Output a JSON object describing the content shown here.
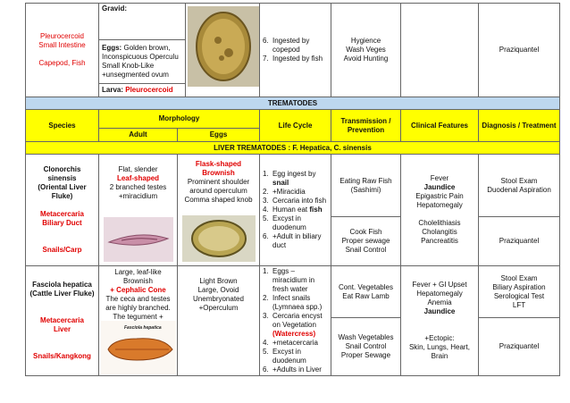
{
  "top": {
    "species": [
      "Pleurocercoid",
      "Small Intestine",
      "Capepod, Fish"
    ],
    "gravid": "Gravid:",
    "eggs": {
      "label": "Eggs:",
      "lines": [
        "Golden brown,",
        "Inconspicuous Operculu",
        "Small Knob-Like",
        "+unsegmented ovum"
      ]
    },
    "larva": {
      "label": "Larva:",
      "value": "Pleurocercoid"
    },
    "life_cycle": [
      {
        "num": "6.",
        "text": "Ingested by copepod"
      },
      {
        "num": "7.",
        "text": "Ingested by fish"
      }
    ],
    "transmission": [
      "Hygience",
      "Wash Veges",
      "Avoid Hunting"
    ],
    "diagnosis": "Praziquantel"
  },
  "section": "TREMATODES",
  "header": {
    "species": "Species",
    "morphology": "Morphology",
    "adult": "Adult",
    "eggs": "Eggs",
    "life_cycle": "Life Cycle",
    "transmission": "Transmission / Prevention",
    "clinical": "Clinical Features",
    "diagnosis": "Diagnosis / Treatment"
  },
  "subsection": "LIVER TREMATODES : F. Hepatica, C. sinensis",
  "rows": [
    {
      "species": {
        "name": [
          "Clonorchis sinensis",
          "(Oriental Liver Fluke)"
        ],
        "stage": [
          "Metacercaria",
          "Biliary Duct"
        ],
        "host": "Snails/Carp"
      },
      "adult": [
        "Flat, slender",
        "Leaf-shaped",
        "2 branched testes",
        "+miracidium"
      ],
      "eggs": [
        "Flask-shaped",
        "Brownish",
        "Prominent shoulder",
        "around operculum",
        "Comma shaped knob"
      ],
      "life_cycle": [
        {
          "num": "1.",
          "text": "Egg ingest by",
          "bold": "snail"
        },
        {
          "num": "2.",
          "text": "+Miracidia"
        },
        {
          "num": "3.",
          "text": "Cercaria into fish"
        },
        {
          "num": "4.",
          "text": "Human eat",
          "bold": "fish"
        },
        {
          "num": "5.",
          "text": "Excyst in duodenum"
        },
        {
          "num": "6.",
          "text": "+Adult in biliary duct"
        }
      ],
      "transmission": [
        [
          "Eating Raw Fish",
          "(Sashimi)"
        ],
        [
          "Cook Fish",
          "Proper sewage",
          "Snail Control"
        ]
      ],
      "clinical": [
        [
          "Fever",
          "Jaundice",
          "Epigastric Pain",
          "Hepatomegaly"
        ],
        [
          "Cholelithiasis",
          "Cholangitis",
          "Pancreatitis"
        ]
      ],
      "diagnosis": [
        [
          "Stool Exam",
          "Duodenal Aspiration"
        ],
        [
          "Praziquantel"
        ]
      ]
    },
    {
      "species": {
        "name": [
          "Fasciola hepatica",
          "(Cattle Liver Fluke)"
        ],
        "stage": [
          "Metacercaria",
          "Liver"
        ],
        "host": "Snails/Kangkong"
      },
      "adult": [
        "Large, leaf-like",
        "Brownish",
        "+ Cephalic Cone",
        "The ceca and testes are highly branched.",
        "The tegument + spines."
      ],
      "image_caption": "Fasciola hepatica",
      "eggs": [
        "Light Brown",
        "Large, Ovoid",
        "Unembryonated",
        "+Operculum"
      ],
      "life_cycle": [
        {
          "num": "1.",
          "text": "Eggs – miracidium in fresh water"
        },
        {
          "num": "2.",
          "text": "Infect snails (Lymnaea spp.)"
        },
        {
          "num": "3.",
          "text": "Cercaria encyst on Vegetation",
          "red": "(Watercress)"
        },
        {
          "num": "4.",
          "text": "+metacercaria"
        },
        {
          "num": "5.",
          "text": "Excyst in duodenum"
        },
        {
          "num": "6.",
          "text": "+Adults in Liver"
        }
      ],
      "transmission": [
        [
          "Cont. Vegetables",
          "Eat Raw Lamb"
        ],
        [
          "Wash Vegetables",
          "Snail Control",
          "Proper Sewage"
        ]
      ],
      "clinical": [
        [
          "Fever + GI Upset",
          "Hepatomegaly",
          "Anemia",
          "Jaundice"
        ],
        [
          "+Ectopic:",
          "Skin, Lungs, Heart, Brain"
        ]
      ],
      "diagnosis": [
        [
          "Stool Exam",
          "Biliary Aspiration",
          "Serological Test",
          "LFT"
        ],
        [
          "Praziquantel"
        ]
      ]
    }
  ]
}
